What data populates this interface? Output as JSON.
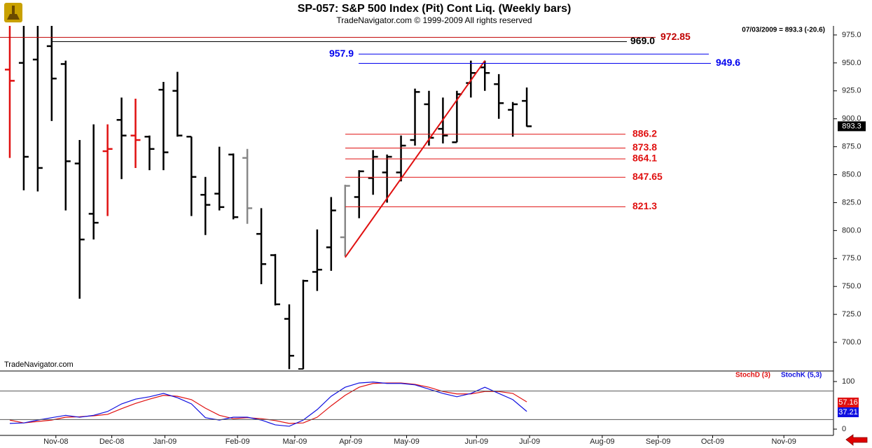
{
  "chart_data": [
    {
      "type": "ohlc",
      "title": "SP-057:  S&P 500 Index (Pit) Cont Liq.  (Weekly bars)",
      "subtitle": "TradeNavigator.com © 1999-2009 All rights reserved",
      "annotation": "07/03/2009 = 893.3 (-20.6)",
      "watermark": "TradeNavigator.com",
      "categories": [
        null,
        null,
        null,
        null,
        null,
        null,
        null,
        null,
        null,
        null,
        null,
        null,
        null,
        null,
        null,
        null,
        null,
        null,
        null,
        null,
        null,
        null,
        null,
        null,
        null,
        null,
        null,
        null,
        null,
        null,
        null,
        null,
        null,
        null,
        null,
        null,
        null,
        null
      ],
      "open": [
        944,
        950,
        953,
        965,
        949,
        860,
        815,
        871,
        899,
        885,
        884,
        926,
        925,
        884,
        832,
        833,
        868,
        865,
        797,
        778,
        721,
        676,
        763,
        785,
        794,
        830,
        847,
        852,
        852,
        881,
        913,
        891,
        879,
        932,
        946,
        931,
        908,
        916
      ],
      "high": [
        990,
        990,
        990,
        990,
        952,
        881,
        895,
        895,
        919,
        918,
        885,
        933,
        942,
        884,
        848,
        875,
        869,
        873,
        820,
        779,
        734,
        756,
        801,
        830,
        841,
        854,
        872,
        868,
        885,
        927,
        925,
        919,
        925,
        952,
        952,
        940,
        915,
        928
      ],
      "low": [
        865,
        836,
        835,
        898,
        818,
        739,
        792,
        813,
        846,
        856,
        854,
        854,
        884,
        813,
        796,
        818,
        810,
        806,
        752,
        733,
        676,
        676,
        746,
        764,
        777,
        811,
        832,
        825,
        844,
        876,
        876,
        878,
        879,
        919,
        925,
        900,
        884,
        893
      ],
      "close": [
        934,
        866,
        856,
        936,
        862,
        792,
        807,
        873,
        885,
        881,
        873,
        870,
        885,
        848,
        823,
        821,
        812,
        820,
        770,
        734,
        688,
        755,
        765,
        818,
        840,
        853,
        866,
        866,
        876,
        924,
        883,
        885,
        922,
        941,
        941,
        914,
        913,
        893.3
      ],
      "colors": [
        "#e01010",
        "#000000",
        "#000000",
        "#000000",
        "#000000",
        "#000000",
        "#000000",
        "#e01010",
        "#000000",
        "#e01010",
        "#000000",
        "#000000",
        "#000000",
        "#000000",
        "#000000",
        "#000000",
        "#000000",
        "#888888",
        "#000000",
        "#000000",
        "#000000",
        "#000000",
        "#000000",
        "#000000",
        "#888888",
        "#000000",
        "#000000",
        "#000000",
        "#000000",
        "#000000",
        "#000000",
        "#000000",
        "#000000",
        "#000000",
        "#000000",
        "#000000",
        "#000000",
        "#000000"
      ],
      "levels": [
        {
          "value": 972.85,
          "color": "#c00000"
        },
        {
          "value": 969.0,
          "label": "969.0",
          "color": "#000000"
        },
        {
          "value": 957.9,
          "color": "#0000ee"
        },
        {
          "value": 949.6,
          "color": "#0000ee"
        },
        {
          "value": 886.2,
          "color": "#e01010"
        },
        {
          "value": 873.8,
          "color": "#e01010"
        },
        {
          "value": 864.1,
          "color": "#e01010"
        },
        {
          "value": 847.65,
          "color": "#e01010"
        },
        {
          "value": 821.3,
          "color": "#e01010"
        }
      ],
      "trendline": {
        "x": [
          24,
          34
        ],
        "y": [
          776,
          952
        ],
        "color": "#e01010"
      },
      "xlim": [
        -0.7,
        58.95
      ],
      "xticks": [
        {
          "value": 3.3,
          "label": "Nov-08"
        },
        {
          "value": 7.3,
          "label": "Dec-08"
        },
        {
          "value": 11.1,
          "label": "Jan-09"
        },
        {
          "value": 16.3,
          "label": "Feb-09"
        },
        {
          "value": 20.4,
          "label": "Mar-09"
        },
        {
          "value": 24.4,
          "label": "Apr-09"
        },
        {
          "value": 28.4,
          "label": "May-09"
        },
        {
          "value": 33.4,
          "label": "Jun-09"
        },
        {
          "value": 37.2,
          "label": "Jul-09"
        },
        {
          "value": 42.4,
          "label": "Aug-09"
        },
        {
          "value": 46.4,
          "label": "Sep-09"
        },
        {
          "value": 50.3,
          "label": "Oct-09"
        },
        {
          "value": 55.4,
          "label": "Nov-09"
        }
      ],
      "ylim": [
        675.6,
        983.1
      ],
      "yticks": [
        {
          "value": 700,
          "label": "700.0"
        },
        {
          "value": 725,
          "label": "725.0"
        },
        {
          "value": 750,
          "label": "750.0"
        },
        {
          "value": 775,
          "label": "775.0"
        },
        {
          "value": 800,
          "label": "800.0"
        },
        {
          "value": 825,
          "label": "825.0"
        },
        {
          "value": 850,
          "label": "850.0"
        },
        {
          "value": 875,
          "label": "875.0"
        },
        {
          "value": 900,
          "label": "900.0"
        },
        {
          "value": 925,
          "label": "925.0"
        },
        {
          "value": 950,
          "label": "950.0"
        },
        {
          "value": 975,
          "label": "975.0"
        }
      ]
    },
    {
      "type": "line",
      "series": [
        {
          "name": "StochD (3)",
          "color": "#e01010",
          "values": [
            19,
            13,
            16,
            19,
            25,
            26,
            28,
            31,
            43,
            54,
            63,
            71,
            69,
            62,
            44,
            29,
            22,
            24,
            22,
            18,
            12,
            13,
            25,
            49,
            71,
            88,
            96,
            97,
            97,
            94,
            88,
            79,
            74,
            74,
            79,
            79,
            75,
            57.16
          ]
        },
        {
          "name": "StochK (5,3)",
          "color": "#1010e0",
          "values": [
            12,
            13,
            19,
            24,
            29,
            25,
            29,
            37,
            53,
            63,
            68,
            75,
            66,
            53,
            24,
            19,
            25,
            25,
            19,
            9,
            6,
            19,
            41,
            69,
            88,
            97,
            99,
            96,
            96,
            93,
            84,
            75,
            68,
            75,
            88,
            75,
            62,
            37.21
          ]
        }
      ],
      "hlines": [
        80,
        20
      ],
      "ylim": [
        -13.2,
        119.2
      ],
      "yticks": [
        0,
        100
      ]
    }
  ]
}
